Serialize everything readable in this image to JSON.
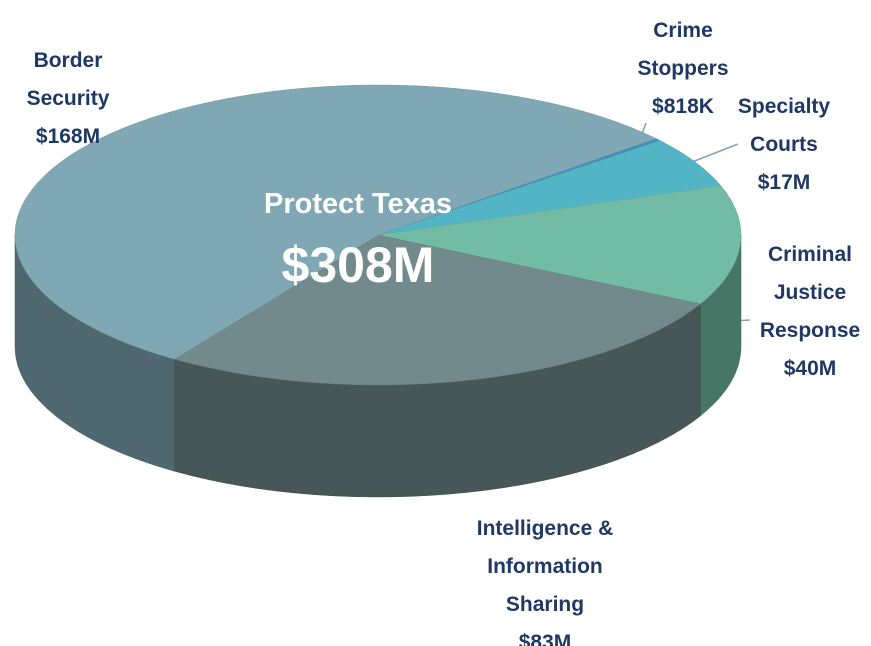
{
  "chart_data": {
    "type": "pie",
    "title": "Protect Texas",
    "subtitle": "$308M",
    "categories": [
      "Crime Stoppers",
      "Specialty Courts",
      "Criminal Justice Response",
      "Intelligence & Information Sharing",
      "Border Security"
    ],
    "values": [
      0.818,
      17,
      40,
      83,
      168
    ],
    "value_labels": [
      "$818K",
      "$17M",
      "$40M",
      "$83M",
      "$168M"
    ],
    "colors": [
      "#3f8fbd",
      "#52b4c5",
      "#72bca5",
      "#738a8c",
      "#80a8b4"
    ]
  }
}
